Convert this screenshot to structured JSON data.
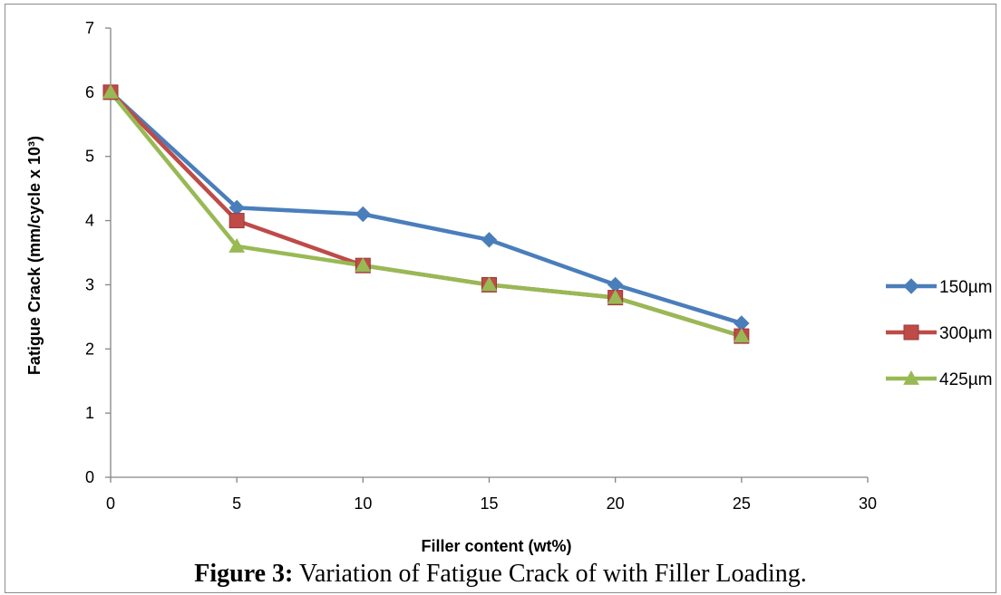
{
  "chart_data": {
    "type": "line",
    "x": [
      0,
      5,
      10,
      15,
      20,
      25
    ],
    "series": [
      {
        "name": "150µm",
        "values": [
          6.0,
          4.2,
          4.1,
          3.7,
          3.0,
          2.4
        ],
        "color": "#4a7ebb",
        "marker": "diamond"
      },
      {
        "name": "300µm",
        "values": [
          6.0,
          4.0,
          3.3,
          3.0,
          2.8,
          2.2
        ],
        "color": "#be4b48",
        "marker": "square"
      },
      {
        "name": "425µm",
        "values": [
          6.0,
          3.6,
          3.3,
          3.0,
          2.8,
          2.2
        ],
        "color": "#98b954",
        "marker": "triangle"
      }
    ],
    "xlabel": "Filler content (wt%)",
    "ylabel": "Fatigue Crack (mm/cycle x 10³)",
    "xlim": [
      0,
      30
    ],
    "ylim": [
      0,
      7
    ],
    "xticks": [
      0,
      5,
      10,
      15,
      20,
      25,
      30
    ],
    "yticks": [
      0,
      1,
      2,
      3,
      4,
      5,
      6,
      7
    ],
    "grid": false,
    "legend_position": "right"
  },
  "caption": {
    "label": "Figure 3:",
    "text": " Variation of Fatigue Crack of with Filler Loading."
  }
}
